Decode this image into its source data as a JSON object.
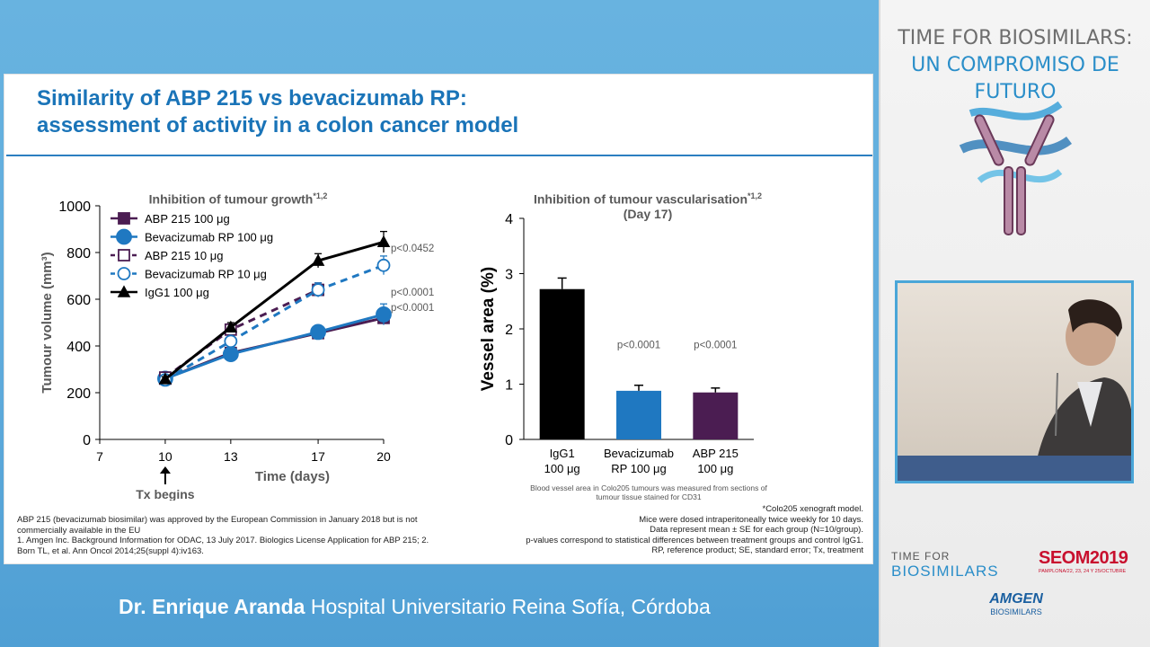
{
  "slide": {
    "title_line1": "Similarity of ABP 215 vs bevacizumab RP:",
    "title_line2": "assessment of activity in a colon cancer model",
    "footnote_left": [
      "ABP 215 (bevacizumab biosimilar) was approved by the European Commission in January 2018 but is not commercially available in the EU",
      "1. Amgen Inc. Background Information for ODAC, 13 July 2017. Biologics License Application for ABP 215; 2. Born TL, et al. Ann Oncol 2014;25(suppl 4):iv163."
    ],
    "footnote_right": [
      "*Colo205 xenograft model.",
      "Mice were dosed intraperitoneally twice weekly for 10 days.",
      "Data represent mean ± SE for each group (N=10/group).",
      "p-values correspond to statistical differences between treatment groups and control IgG1.",
      "RP, reference product; SE, standard error; Tx, treatment"
    ],
    "vessel_caption": "Blood vessel area in Colo205 tumours was measured from sections of tumour tissue stained for CD31"
  },
  "speaker": {
    "name": "Dr. Enrique Aranda",
    "affiliation": "Hospital Universitario Reina Sofía, Córdoba"
  },
  "event": {
    "title_line1": "TIME FOR BIOSIMILARS:",
    "title_line2": "UN COMPROMISO DE FUTURO",
    "logo_tfb_line1": "TIME FOR",
    "logo_tfb_line2": "BIOSIMILARS",
    "logo_seom_line1": "SEOM2019",
    "logo_seom_line2": "PAMPLONA/22, 23, 24 Y 25/OCTUBRE",
    "logo_amgen_line1": "AMGEN",
    "logo_amgen_line2": "BIOSIMILARS"
  },
  "colors": {
    "title_blue": "#1a74b8",
    "abp": "#4b1d52",
    "beva": "#1f78c1",
    "igg": "#000000"
  },
  "chart_data": [
    {
      "type": "line",
      "title": "Inhibition of tumour growth",
      "title_sup": "*1,2",
      "xlabel": "Time (days)",
      "ylabel": "Tumour volume (mm³)",
      "xlim": [
        7,
        20
      ],
      "ylim": [
        0,
        1000
      ],
      "xticks": [
        7,
        10,
        13,
        17,
        20
      ],
      "yticks": [
        0,
        200,
        400,
        600,
        800,
        1000
      ],
      "annotation_tx": "Tx begins",
      "legend_position": "top-left",
      "series": [
        {
          "name": "ABP 215 100 μg",
          "color": "#4b1d52",
          "marker": "square",
          "fill": true,
          "dash": false,
          "x": [
            10,
            13,
            17,
            20
          ],
          "y": [
            260,
            370,
            455,
            520
          ],
          "err": [
            10,
            15,
            25,
            25
          ]
        },
        {
          "name": "Bevacizumab  RP 100 μg",
          "color": "#1f78c1",
          "marker": "circle",
          "fill": true,
          "dash": false,
          "x": [
            10,
            13,
            17,
            20
          ],
          "y": [
            260,
            365,
            460,
            535
          ],
          "err": [
            10,
            15,
            28,
            45
          ]
        },
        {
          "name": "ABP 215 10 μg",
          "color": "#4b1d52",
          "marker": "square",
          "fill": false,
          "dash": true,
          "x": [
            10,
            13,
            17
          ],
          "y": [
            265,
            470,
            640
          ],
          "err": [
            10,
            20,
            30
          ]
        },
        {
          "name": "Bevacizumab RP 10 μg",
          "color": "#1f78c1",
          "marker": "circle",
          "fill": false,
          "dash": true,
          "x": [
            10,
            13,
            17,
            20
          ],
          "y": [
            255,
            420,
            640,
            745
          ],
          "err": [
            10,
            20,
            30,
            40
          ]
        },
        {
          "name": "IgG1 100 μg",
          "color": "#000000",
          "marker": "triangle",
          "fill": true,
          "dash": false,
          "x": [
            10,
            13,
            17,
            20
          ],
          "y": [
            258,
            480,
            765,
            845
          ],
          "err": [
            10,
            20,
            30,
            45
          ]
        }
      ],
      "pvalues": [
        {
          "label": "p<0.0452",
          "y": 820
        },
        {
          "label": "p<0.0001",
          "y": 630
        },
        {
          "label": "p<0.0001",
          "y": 565
        }
      ]
    },
    {
      "type": "bar",
      "title": "Inhibition of tumour vascularisation",
      "title_sup": "*1,2",
      "subtitle": "(Day 17)",
      "ylabel": "Vessel area (%)",
      "ylim": [
        0,
        4
      ],
      "yticks": [
        0,
        1,
        2,
        3,
        4
      ],
      "categories": [
        "IgG1 100 μg",
        "Bevacizumab RP 100 μg",
        "ABP 215 100 μg"
      ],
      "category_lines": [
        [
          "IgG1",
          "100 μg"
        ],
        [
          "Bevacizumab",
          "RP 100 μg"
        ],
        [
          "ABP 215",
          "100 μg"
        ]
      ],
      "values": [
        2.72,
        0.88,
        0.85
      ],
      "errors": [
        0.2,
        0.1,
        0.08
      ],
      "colors": [
        "#000000",
        "#1f78c1",
        "#4b1d52"
      ],
      "pvalues": [
        "",
        "p<0.0001",
        "p<0.0001"
      ]
    }
  ]
}
